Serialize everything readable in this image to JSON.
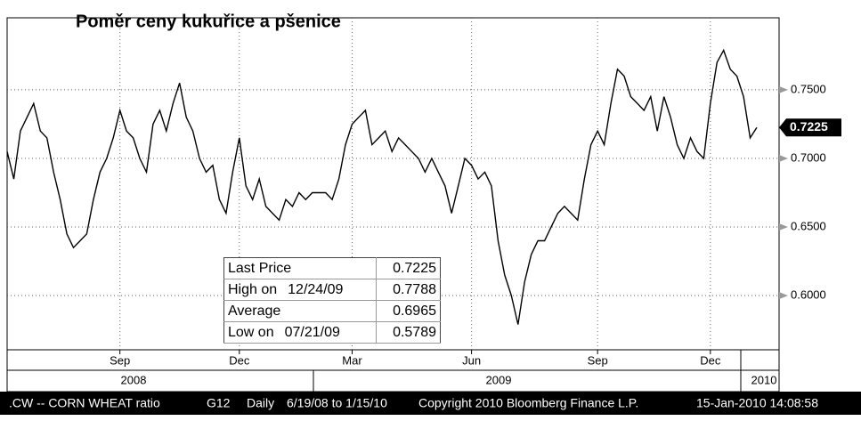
{
  "chart_data": {
    "type": "line",
    "title": "Poměr ceny kukuřice a pšenice",
    "categories": [
      null,
      null,
      null,
      null,
      null,
      null,
      null,
      null,
      null,
      null,
      null,
      null,
      null,
      null,
      null,
      null,
      null,
      "Sep",
      null,
      null,
      null,
      null,
      null,
      null,
      null,
      null,
      null,
      null,
      null,
      null,
      null,
      null,
      null,
      null,
      null,
      "Dec",
      null,
      null,
      null,
      null,
      null,
      null,
      null,
      null,
      null,
      null,
      null,
      null,
      null,
      null,
      null,
      null,
      "Mar",
      null,
      null,
      null,
      null,
      null,
      null,
      null,
      null,
      null,
      null,
      null,
      null,
      null,
      null,
      null,
      null,
      null,
      "Jun",
      null,
      null,
      null,
      null,
      null,
      null,
      null,
      null,
      null,
      null,
      null,
      null,
      null,
      null,
      null,
      null,
      null,
      null,
      "Sep",
      null,
      null,
      null,
      null,
      null,
      null,
      null,
      null,
      null,
      null,
      null,
      null,
      null,
      null,
      null,
      null,
      "Dec",
      null,
      null,
      null,
      null,
      null,
      null,
      null
    ],
    "years": [
      "2008",
      "2009",
      "2010"
    ],
    "series": [
      {
        "name": ".CW -- CORN WHEAT ratio",
        "color": "#000000",
        "values": [
          0.705,
          0.685,
          0.72,
          0.73,
          0.74,
          0.72,
          0.715,
          0.69,
          0.67,
          0.645,
          0.635,
          0.64,
          0.645,
          0.67,
          0.69,
          0.7,
          0.715,
          0.735,
          0.72,
          0.715,
          0.7,
          0.69,
          0.725,
          0.735,
          0.72,
          0.74,
          0.755,
          0.73,
          0.72,
          0.7,
          0.69,
          0.695,
          0.67,
          0.66,
          0.69,
          0.715,
          0.68,
          0.67,
          0.685,
          0.665,
          0.66,
          0.655,
          0.67,
          0.665,
          0.675,
          0.67,
          0.675,
          0.675,
          0.675,
          0.67,
          0.685,
          0.71,
          0.725,
          0.73,
          0.735,
          0.71,
          0.715,
          0.72,
          0.705,
          0.715,
          0.71,
          0.705,
          0.7,
          0.69,
          0.7,
          0.69,
          0.68,
          0.66,
          0.68,
          0.7,
          0.695,
          0.685,
          0.69,
          0.68,
          0.64,
          0.615,
          0.6,
          0.5789,
          0.61,
          0.63,
          0.64,
          0.64,
          0.65,
          0.66,
          0.665,
          0.66,
          0.655,
          0.685,
          0.71,
          0.72,
          0.71,
          0.74,
          0.765,
          0.76,
          0.745,
          0.74,
          0.735,
          0.745,
          0.72,
          0.745,
          0.73,
          0.71,
          0.7,
          0.715,
          0.705,
          0.7,
          0.74,
          0.77,
          0.7788,
          0.765,
          0.76,
          0.745,
          0.715,
          0.7225
        ]
      }
    ],
    "ylim": [
      0.5605,
      0.8025
    ],
    "yticks": [
      {
        "value": 0.6,
        "label": "0.6000"
      },
      {
        "value": 0.65,
        "label": "0.6500"
      },
      {
        "value": 0.7,
        "label": "0.7000"
      },
      {
        "value": 0.75,
        "label": "0.7500"
      }
    ],
    "grid": true,
    "stats": [
      {
        "label": "Last Price",
        "value": "0.7225"
      },
      {
        "label": "High on",
        "date": "12/24/09",
        "value": "0.7788"
      },
      {
        "label": "Average",
        "value": "0.6965"
      },
      {
        "label": "Low on",
        "date": "07/21/09",
        "value": "0.5789"
      }
    ],
    "footer": {
      "ticker": ".CW -- CORN WHEAT ratio",
      "code": "G12",
      "freq": "Daily",
      "range": "6/19/08 to 1/15/10",
      "copyright": "Copyright 2010 Bloomberg Finance L.P.",
      "stamp": "15-Jan-2010 14:08:58"
    }
  }
}
